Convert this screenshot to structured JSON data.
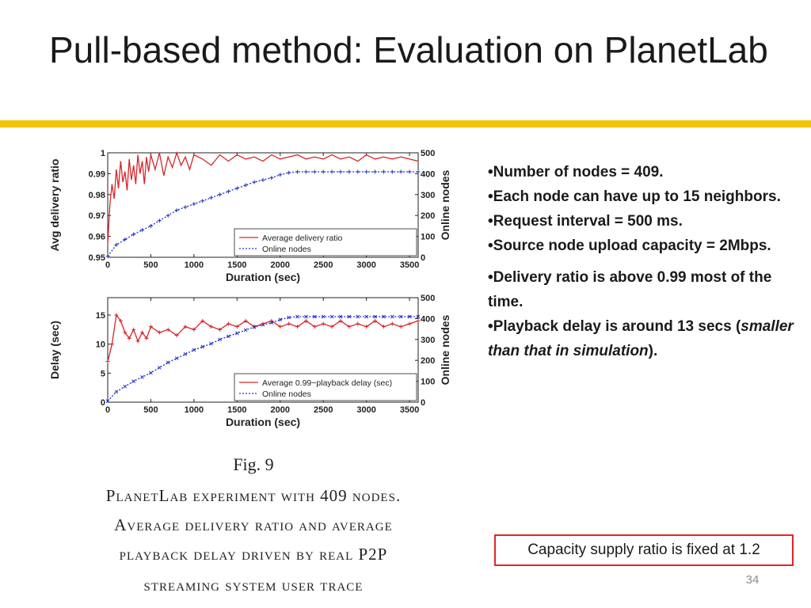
{
  "slide": {
    "title": "Pull-based method: Evaluation on PlanetLab",
    "accent_color": "#f5c400",
    "page_number": "34"
  },
  "bullets": {
    "b1": "Number of nodes = 409.",
    "b2": "Each node can have up to 15 neighbors.",
    "b3": "Request interval = 500 ms.",
    "b4": "Source node upload capacity = 2Mbps.",
    "b5": "Delivery ratio is above 0.99 most of the time.",
    "b6_prefix": "Playback delay is around 13 secs (",
    "b6_italic": "smaller than that in simulation",
    "b6_suffix": ")."
  },
  "callout": {
    "text": "Capacity supply ratio is fixed at 1.2",
    "border_color": "#e32626"
  },
  "figure": {
    "label": "Fig. 9",
    "caption_lines": [
      "PlanetLab experiment with 409 nodes.",
      "Average delivery ratio and average",
      "playback delay driven by real P2P",
      "streaming system user trace"
    ]
  },
  "chart_data": [
    {
      "type": "line",
      "title": "",
      "xlabel": "Duration (sec)",
      "ylabel": "Avg delivery ratio",
      "y2label": "Online nodes",
      "xlim": [
        0,
        3600
      ],
      "ylim": [
        0.95,
        1.0
      ],
      "y2lim": [
        0,
        500
      ],
      "x_ticks": [
        0,
        500,
        1000,
        1500,
        2000,
        2500,
        3000,
        3500
      ],
      "y_ticks": [
        0.95,
        0.96,
        0.97,
        0.98,
        0.99,
        1
      ],
      "y_tick_labels": [
        "0.95",
        "0.96",
        "0.97",
        "0.98",
        "0.99",
        "1"
      ],
      "y2_ticks": [
        0,
        100,
        200,
        300,
        400,
        500
      ],
      "legend_position": "bottom-right",
      "series": [
        {
          "name": "Average delivery ratio",
          "axis": "left",
          "color": "#d6262a",
          "marker": "none",
          "x": [
            0,
            25,
            50,
            75,
            100,
            125,
            150,
            175,
            200,
            225,
            250,
            275,
            300,
            325,
            350,
            375,
            400,
            425,
            450,
            475,
            500,
            550,
            600,
            650,
            700,
            750,
            800,
            850,
            900,
            950,
            1000,
            1100,
            1200,
            1300,
            1400,
            1500,
            1600,
            1700,
            1800,
            1900,
            2000,
            2100,
            2200,
            2300,
            2400,
            2500,
            2600,
            2700,
            2800,
            2900,
            3000,
            3100,
            3200,
            3300,
            3400,
            3500,
            3600
          ],
          "values": [
            0.956,
            0.975,
            0.985,
            0.978,
            0.992,
            0.983,
            0.996,
            0.986,
            0.991,
            0.982,
            0.997,
            0.987,
            0.994,
            0.985,
            0.999,
            0.99,
            0.996,
            0.985,
            0.998,
            0.991,
            0.999,
            0.992,
            1.0,
            0.989,
            0.998,
            0.993,
            1.0,
            0.994,
            0.998,
            0.992,
            0.999,
            0.997,
            0.994,
            0.999,
            0.996,
            0.999,
            0.997,
            0.998,
            0.996,
            0.999,
            0.997,
            0.998,
            0.999,
            0.997,
            0.998,
            0.997,
            0.999,
            0.997,
            0.998,
            0.996,
            0.999,
            0.997,
            0.998,
            0.997,
            0.998,
            0.997,
            0.996
          ]
        },
        {
          "name": "Online nodes",
          "axis": "right",
          "color": "#2431c9",
          "marker": "+",
          "x": [
            0,
            100,
            200,
            300,
            400,
            500,
            600,
            700,
            800,
            900,
            1000,
            1100,
            1200,
            1300,
            1400,
            1500,
            1600,
            1700,
            1800,
            1900,
            2000,
            2100,
            2200,
            2300,
            2400,
            2500,
            2600,
            2700,
            2800,
            2900,
            3000,
            3100,
            3200,
            3300,
            3400,
            3500,
            3600
          ],
          "values": [
            5,
            60,
            85,
            110,
            130,
            150,
            175,
            200,
            225,
            240,
            255,
            270,
            285,
            300,
            315,
            330,
            345,
            360,
            370,
            380,
            395,
            405,
            409,
            409,
            409,
            409,
            409,
            409,
            409,
            409,
            409,
            409,
            409,
            409,
            409,
            409,
            409
          ]
        }
      ]
    },
    {
      "type": "line",
      "title": "",
      "xlabel": "Duration (sec)",
      "ylabel": "Delay (sec)",
      "y2label": "Online nodes",
      "xlim": [
        0,
        3600
      ],
      "ylim": [
        0,
        18
      ],
      "y2lim": [
        0,
        500
      ],
      "x_ticks": [
        0,
        500,
        1000,
        1500,
        2000,
        2500,
        3000,
        3500
      ],
      "y_ticks": [
        0,
        5,
        10,
        15
      ],
      "y_tick_labels": [
        "0",
        "5",
        "10",
        "15"
      ],
      "y2_ticks": [
        0,
        100,
        200,
        300,
        400,
        500
      ],
      "legend_position": "bottom-right",
      "series": [
        {
          "name": "Average 0.99−playback delay (sec)",
          "axis": "left",
          "color": "#d6262a",
          "marker": "+",
          "x": [
            0,
            50,
            100,
            150,
            200,
            250,
            300,
            350,
            400,
            450,
            500,
            600,
            700,
            800,
            900,
            1000,
            1100,
            1200,
            1300,
            1400,
            1500,
            1600,
            1700,
            1800,
            1900,
            2000,
            2100,
            2200,
            2300,
            2400,
            2500,
            2600,
            2700,
            2800,
            2900,
            3000,
            3100,
            3200,
            3300,
            3400,
            3500,
            3600
          ],
          "values": [
            7,
            10,
            15,
            14,
            12,
            11,
            12.5,
            10.5,
            12,
            11,
            13,
            12,
            12.5,
            11.5,
            13,
            12.5,
            14,
            13,
            12.5,
            13.5,
            13,
            14,
            13,
            13.5,
            14,
            13,
            13.5,
            13,
            14,
            13,
            13.5,
            13,
            14,
            13,
            13.5,
            13,
            14,
            13,
            13.5,
            13,
            13.5,
            14
          ]
        },
        {
          "name": "Online nodes",
          "axis": "right",
          "color": "#2431c9",
          "marker": "x",
          "x": [
            0,
            100,
            200,
            300,
            400,
            500,
            600,
            700,
            800,
            900,
            1000,
            1100,
            1200,
            1300,
            1400,
            1500,
            1600,
            1700,
            1800,
            1900,
            2000,
            2100,
            2200,
            2300,
            2400,
            2500,
            2600,
            2700,
            2800,
            2900,
            3000,
            3100,
            3200,
            3300,
            3400,
            3500,
            3600
          ],
          "values": [
            5,
            50,
            75,
            100,
            120,
            140,
            165,
            190,
            210,
            230,
            250,
            265,
            280,
            300,
            315,
            330,
            345,
            360,
            370,
            380,
            395,
            405,
            409,
            409,
            409,
            409,
            409,
            409,
            409,
            409,
            409,
            409,
            409,
            409,
            409,
            409,
            409
          ]
        }
      ]
    }
  ]
}
